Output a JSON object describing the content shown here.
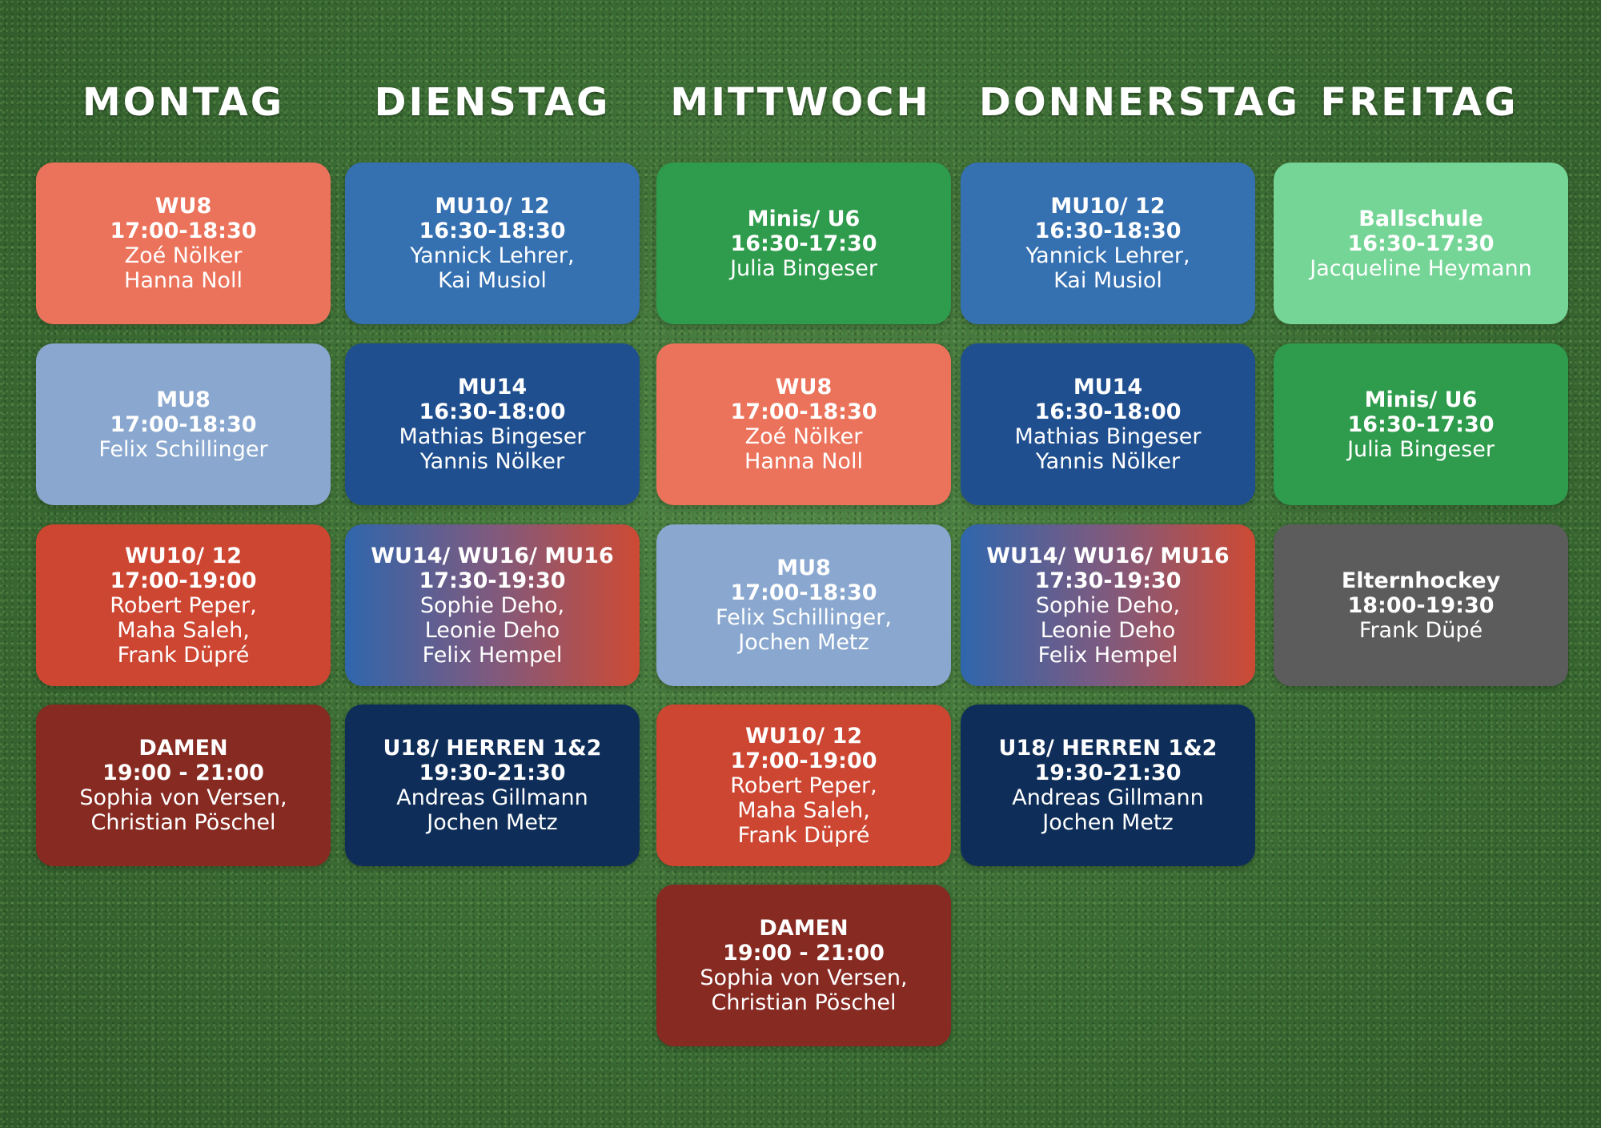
{
  "days": [
    "MONTAG",
    "DIENSTAG",
    "MITTWOCH",
    "DONNERSTAG",
    "FREITAG"
  ],
  "colors": {
    "salmon": "#ec735b",
    "blue": "#3570b1",
    "green": "#2f9c4d",
    "light_green": "#75d596",
    "light_blue": "#8aa8cf",
    "dark_blue": "#1f4f8f",
    "red": "#cd4632",
    "gray": "#5c5c5c",
    "maroon": "#862a22",
    "navy": "#0e2e59"
  },
  "schedule": {
    "montag": [
      {
        "title": "WU8",
        "time": "17:00-18:30",
        "coach": "Zoé Nölker\nHanna Noll",
        "color": "salmon"
      },
      {
        "title": "MU8",
        "time": "17:00-18:30",
        "coach": "Felix Schillinger",
        "color": "light_blue"
      },
      {
        "title": "WU10/ 12",
        "time": "17:00-19:00",
        "coach": "Robert Peper,\nMaha Saleh,\nFrank Düpré",
        "color": "red"
      },
      {
        "title": "DAMEN",
        "time": "19:00 - 21:00",
        "coach": "Sophia von Versen,\nChristian Pöschel",
        "color": "maroon"
      }
    ],
    "dienstag": [
      {
        "title": "MU10/ 12",
        "time": "16:30-18:30",
        "coach": "Yannick Lehrer,\nKai Musiol",
        "color": "blue"
      },
      {
        "title": "MU14",
        "time": "16:30-18:00",
        "coach": "Mathias Bingeser\nYannis Nölker",
        "color": "dark_blue"
      },
      {
        "title": "WU14/ WU16/ MU16",
        "time": "17:30-19:30",
        "coach": "Sophie Deho,\nLeonie Deho\nFelix Hempel",
        "color": "gradient"
      },
      {
        "title": "U18/ HERREN 1&2",
        "time": "19:30-21:30",
        "coach": "Andreas Gillmann\nJochen Metz",
        "color": "navy"
      }
    ],
    "mittwoch": [
      {
        "title": "Minis/ U6",
        "time": "16:30-17:30",
        "coach": "Julia Bingeser",
        "color": "green"
      },
      {
        "title": "WU8",
        "time": "17:00-18:30",
        "coach": "Zoé Nölker\nHanna Noll",
        "color": "salmon"
      },
      {
        "title": "MU8",
        "time": "17:00-18:30",
        "coach": "Felix Schillinger,\nJochen Metz",
        "color": "light_blue"
      },
      {
        "title": "WU10/ 12",
        "time": "17:00-19:00",
        "coach": "Robert Peper,\nMaha Saleh,\nFrank Düpré",
        "color": "red"
      },
      {
        "title": "DAMEN",
        "time": "19:00 - 21:00",
        "coach": "Sophia von Versen,\nChristian Pöschel",
        "color": "maroon"
      }
    ],
    "donnerstag": [
      {
        "title": "MU10/ 12",
        "time": "16:30-18:30",
        "coach": "Yannick Lehrer,\nKai Musiol",
        "color": "blue"
      },
      {
        "title": "MU14",
        "time": "16:30-18:00",
        "coach": "Mathias Bingeser\nYannis Nölker",
        "color": "dark_blue"
      },
      {
        "title": "WU14/ WU16/ MU16",
        "time": "17:30-19:30",
        "coach": "Sophie Deho,\nLeonie Deho\nFelix Hempel",
        "color": "gradient"
      },
      {
        "title": "U18/ HERREN 1&2",
        "time": "19:30-21:30",
        "coach": "Andreas Gillmann\nJochen Metz",
        "color": "navy"
      }
    ],
    "freitag": [
      {
        "title": "Ballschule",
        "time": "16:30-17:30",
        "coach": "Jacqueline Heymann",
        "color": "light_green"
      },
      {
        "title": "Minis/ U6",
        "time": "16:30-17:30",
        "coach": "Julia Bingeser",
        "color": "green"
      },
      {
        "title": "Elternhockey",
        "time": "18:00-19:30",
        "coach": "Frank Düpé",
        "color": "gray"
      }
    ]
  }
}
